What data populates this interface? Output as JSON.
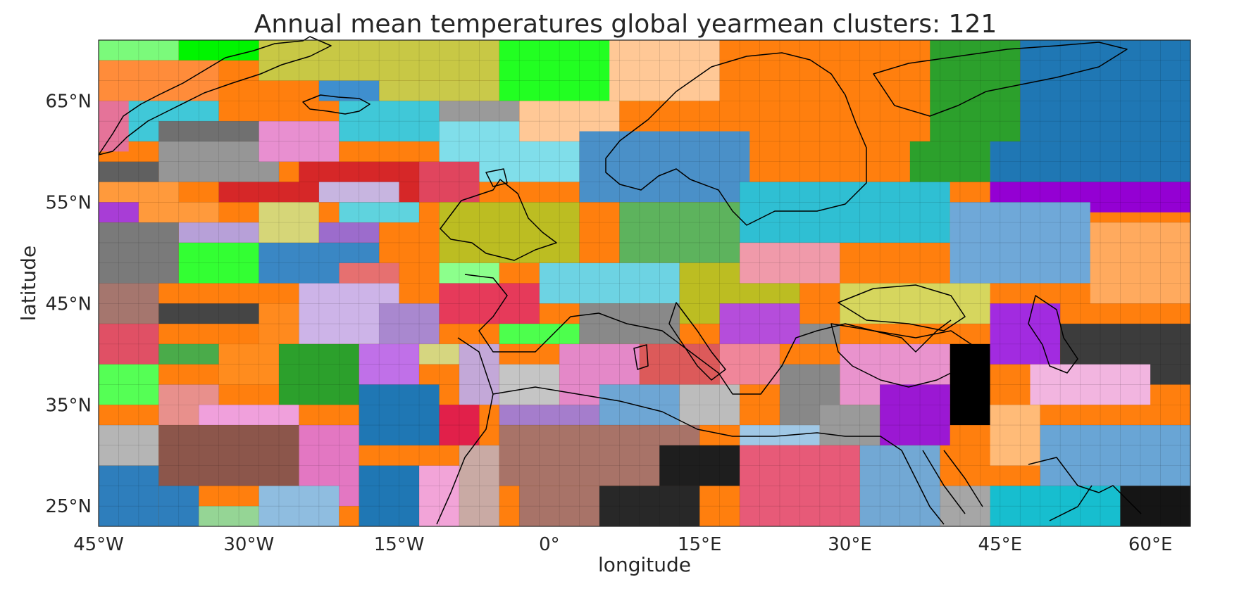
{
  "title": "Annual mean temperatures global yearmean clusters: 121",
  "chart_data": {
    "type": "heatmap",
    "title": "Annual mean temperatures global yearmean clusters: 121",
    "xlabel": "longitude",
    "ylabel": "latitude",
    "xlim": [
      -45,
      64
    ],
    "ylim": [
      23,
      71
    ],
    "grid_step_deg": 2,
    "x_ticks": [
      "45°W",
      "30°W",
      "15°W",
      "0°",
      "15°E",
      "30°E",
      "45°E",
      "60°E"
    ],
    "x_tick_values": [
      -45,
      -30,
      -15,
      0,
      15,
      30,
      45,
      60
    ],
    "y_ticks": [
      "65°N",
      "55°N",
      "45°N",
      "35°N",
      "25°N"
    ],
    "y_tick_values": [
      65,
      55,
      45,
      35,
      25
    ],
    "n_clusters": 121,
    "regions": [
      {
        "lon": [
          -45,
          64
        ],
        "lat": [
          23,
          71
        ],
        "color": "#ff7f0e"
      },
      {
        "lon": [
          -45,
          -39
        ],
        "lat": [
          67,
          71
        ],
        "color": "#ff7f0e"
      },
      {
        "lon": [
          -45,
          -37
        ],
        "lat": [
          69,
          71
        ],
        "color": "#7bfa7b"
      },
      {
        "lon": [
          -37,
          -29
        ],
        "lat": [
          69,
          71
        ],
        "color": "#00f500"
      },
      {
        "lon": [
          -29,
          -5
        ],
        "lat": [
          67,
          71
        ],
        "color": "#c8c845"
      },
      {
        "lon": [
          -5,
          13
        ],
        "lat": [
          65,
          71
        ],
        "color": "#22ff22"
      },
      {
        "lon": [
          -45,
          -33
        ],
        "lat": [
          65,
          69
        ],
        "color": "#ff8c3a"
      },
      {
        "lon": [
          -17,
          -5
        ],
        "lat": [
          65,
          67
        ],
        "color": "#c9c94a"
      },
      {
        "lon": [
          -23,
          -17
        ],
        "lat": [
          65,
          67
        ],
        "color": "#3f8fcf"
      },
      {
        "lon": [
          6,
          20
        ],
        "lat": [
          65,
          71
        ],
        "color": "#ffc896"
      },
      {
        "lon": [
          13,
          17
        ],
        "lat": [
          69,
          71
        ],
        "color": "#ffc896"
      },
      {
        "lon": [
          17,
          40
        ],
        "lat": [
          59,
          71
        ],
        "color": "#ff7f0e"
      },
      {
        "lon": [
          38,
          47
        ],
        "lat": [
          61,
          71
        ],
        "color": "#2ca02c"
      },
      {
        "lon": [
          47,
          64
        ],
        "lat": [
          61,
          71
        ],
        "color": "#1f77b4"
      },
      {
        "lon": [
          44,
          64
        ],
        "lat": [
          57,
          61
        ],
        "color": "#1f77b4"
      },
      {
        "lon": [
          36,
          44
        ],
        "lat": [
          57,
          61
        ],
        "color": "#2ca02c"
      },
      {
        "lon": [
          44,
          64
        ],
        "lat": [
          54,
          57
        ],
        "color": "#9400d3"
      },
      {
        "lon": [
          -45,
          -42
        ],
        "lat": [
          60,
          65
        ],
        "color": "#e57399"
      },
      {
        "lon": [
          -42,
          -33
        ],
        "lat": [
          61,
          65
        ],
        "color": "#40c8d8"
      },
      {
        "lon": [
          -39,
          -29
        ],
        "lat": [
          61,
          63
        ],
        "color": "#707070"
      },
      {
        "lon": [
          -39,
          -27
        ],
        "lat": [
          57,
          61
        ],
        "color": "#969696"
      },
      {
        "lon": [
          -45,
          -39
        ],
        "lat": [
          57,
          59
        ],
        "color": "#606060"
      },
      {
        "lon": [
          -29,
          -21
        ],
        "lat": [
          59,
          63
        ],
        "color": "#e88fd0"
      },
      {
        "lon": [
          -21,
          -11
        ],
        "lat": [
          61,
          65
        ],
        "color": "#40c8d8"
      },
      {
        "lon": [
          -11,
          3
        ],
        "lat": [
          57,
          63
        ],
        "color": "#80deea"
      },
      {
        "lon": [
          -11,
          -3
        ],
        "lat": [
          63,
          65
        ],
        "color": "#9a9a9a"
      },
      {
        "lon": [
          -3,
          7
        ],
        "lat": [
          61,
          65
        ],
        "color": "#ffc896"
      },
      {
        "lon": [
          -25,
          -13
        ],
        "lat": [
          55,
          59
        ],
        "color": "#d62728"
      },
      {
        "lon": [
          -13,
          -7
        ],
        "lat": [
          55,
          59
        ],
        "color": "#e0455e"
      },
      {
        "lon": [
          3,
          20
        ],
        "lat": [
          55,
          62
        ],
        "color": "#4a90c8"
      },
      {
        "lon": [
          -45,
          -37
        ],
        "lat": [
          55,
          57
        ],
        "color": "#ff9a3c"
      },
      {
        "lon": [
          -45,
          -41
        ],
        "lat": [
          53,
          55
        ],
        "color": "#a83dd6"
      },
      {
        "lon": [
          -41,
          -33
        ],
        "lat": [
          53,
          55
        ],
        "color": "#ff9a3c"
      },
      {
        "lon": [
          -33,
          -23
        ],
        "lat": [
          55,
          57
        ],
        "color": "#d62728"
      },
      {
        "lon": [
          -23,
          -15
        ],
        "lat": [
          55,
          57
        ],
        "color": "#c7b5e0"
      },
      {
        "lon": [
          -45,
          -37
        ],
        "lat": [
          47,
          53
        ],
        "color": "#7a7a7a"
      },
      {
        "lon": [
          -37,
          -29
        ],
        "lat": [
          51,
          53
        ],
        "color": "#b7a0d8"
      },
      {
        "lon": [
          -29,
          -23
        ],
        "lat": [
          51,
          55
        ],
        "color": "#d6d678"
      },
      {
        "lon": [
          -23,
          -17
        ],
        "lat": [
          51,
          53
        ],
        "color": "#9c6ccc"
      },
      {
        "lon": [
          -21,
          -13
        ],
        "lat": [
          53,
          55
        ],
        "color": "#5fd3de"
      },
      {
        "lon": [
          -11,
          3
        ],
        "lat": [
          49,
          55
        ],
        "color": "#bcbd22"
      },
      {
        "lon": [
          7,
          19
        ],
        "lat": [
          49,
          55
        ],
        "color": "#5db35d"
      },
      {
        "lon": [
          19,
          40
        ],
        "lat": [
          51,
          57
        ],
        "color": "#2fbfd3"
      },
      {
        "lon": [
          40,
          54
        ],
        "lat": [
          47,
          55
        ],
        "color": "#6fa8d8"
      },
      {
        "lon": [
          54,
          64
        ],
        "lat": [
          45,
          53
        ],
        "color": "#ffaa5e"
      },
      {
        "lon": [
          -37,
          -29
        ],
        "lat": [
          47,
          51
        ],
        "color": "#33ff33"
      },
      {
        "lon": [
          -29,
          -17
        ],
        "lat": [
          47,
          51
        ],
        "color": "#3a87c4"
      },
      {
        "lon": [
          -21,
          -15
        ],
        "lat": [
          47,
          49
        ],
        "color": "#e67070"
      },
      {
        "lon": [
          -11,
          -5
        ],
        "lat": [
          45,
          49
        ],
        "color": "#8cff8c"
      },
      {
        "lon": [
          -1,
          13
        ],
        "lat": [
          45,
          49
        ],
        "color": "#6dd3e3"
      },
      {
        "lon": [
          13,
          25
        ],
        "lat": [
          43,
          49
        ],
        "color": "#bcbd22"
      },
      {
        "lon": [
          19,
          29
        ],
        "lat": [
          47,
          51
        ],
        "color": "#f09aaa"
      },
      {
        "lon": [
          29,
          44
        ],
        "lat": [
          43,
          47
        ],
        "color": "#d6d65e"
      },
      {
        "lon": [
          -45,
          -39
        ],
        "lat": [
          43,
          47
        ],
        "color": "#a5766e"
      },
      {
        "lon": [
          -39,
          -29
        ],
        "lat": [
          43,
          45
        ],
        "color": "#454545"
      },
      {
        "lon": [
          -29,
          -25
        ],
        "lat": [
          41,
          45
        ],
        "color": "#ff8a1e"
      },
      {
        "lon": [
          -25,
          -15
        ],
        "lat": [
          41,
          47
        ],
        "color": "#cdb4e8"
      },
      {
        "lon": [
          -17,
          -11
        ],
        "lat": [
          41,
          45
        ],
        "color": "#a988cf"
      },
      {
        "lon": [
          -11,
          -1
        ],
        "lat": [
          43,
          47
        ],
        "color": "#e63a5a"
      },
      {
        "lon": [
          -5,
          3
        ],
        "lat": [
          41,
          43
        ],
        "color": "#4dff4d"
      },
      {
        "lon": [
          3,
          13
        ],
        "lat": [
          41,
          45
        ],
        "color": "#898989"
      },
      {
        "lon": [
          17,
          25
        ],
        "lat": [
          41,
          45
        ],
        "color": "#b54ddb"
      },
      {
        "lon": [
          25,
          29
        ],
        "lat": [
          41,
          43
        ],
        "color": "#8d8d8d"
      },
      {
        "lon": [
          -45,
          -39
        ],
        "lat": [
          39,
          43
        ],
        "color": "#e05065"
      },
      {
        "lon": [
          -39,
          -33
        ],
        "lat": [
          39,
          41
        ],
        "color": "#4aab4a"
      },
      {
        "lon": [
          -33,
          -27
        ],
        "lat": [
          37,
          41
        ],
        "color": "#ff8c1e"
      },
      {
        "lon": [
          -27,
          -19
        ],
        "lat": [
          35,
          41
        ],
        "color": "#2ca02c"
      },
      {
        "lon": [
          -19,
          -13
        ],
        "lat": [
          37,
          41
        ],
        "color": "#c070e8"
      },
      {
        "lon": [
          -13,
          -9
        ],
        "lat": [
          39,
          41
        ],
        "color": "#d6d680"
      },
      {
        "lon": [
          -9,
          -5
        ],
        "lat": [
          35,
          41
        ],
        "color": "#c3a8d8"
      },
      {
        "lon": [
          -5,
          1
        ],
        "lat": [
          35,
          39
        ],
        "color": "#c5c5c5"
      },
      {
        "lon": [
          1,
          9
        ],
        "lat": [
          35,
          41
        ],
        "color": "#e488c8"
      },
      {
        "lon": [
          9,
          17
        ],
        "lat": [
          37,
          41
        ],
        "color": "#dc5a5a"
      },
      {
        "lon": [
          17,
          23
        ],
        "lat": [
          37,
          41
        ],
        "color": "#f0869a"
      },
      {
        "lon": [
          23,
          29
        ],
        "lat": [
          33,
          39
        ],
        "color": "#888888"
      },
      {
        "lon": [
          29,
          40
        ],
        "lat": [
          35,
          41
        ],
        "color": "#e993cd"
      },
      {
        "lon": [
          40,
          44
        ],
        "lat": [
          33,
          41
        ],
        "color": "#000000"
      },
      {
        "lon": [
          44,
          51
        ],
        "lat": [
          39,
          45
        ],
        "color": "#a22be0"
      },
      {
        "lon": [
          51,
          64
        ],
        "lat": [
          37,
          43
        ],
        "color": "#3c3c3c"
      },
      {
        "lon": [
          48,
          60
        ],
        "lat": [
          35,
          39
        ],
        "color": "#f2b5e0"
      },
      {
        "lon": [
          -45,
          -39
        ],
        "lat": [
          35,
          39
        ],
        "color": "#55ff55"
      },
      {
        "lon": [
          -39,
          -33
        ],
        "lat": [
          33,
          37
        ],
        "color": "#e8908c"
      },
      {
        "lon": [
          -35,
          -25
        ],
        "lat": [
          33,
          35
        ],
        "color": "#f0a0dc"
      },
      {
        "lon": [
          -19,
          -11
        ],
        "lat": [
          31,
          37
        ],
        "color": "#1f77b4"
      },
      {
        "lon": [
          -11,
          -7
        ],
        "lat": [
          31,
          35
        ],
        "color": "#e1204a"
      },
      {
        "lon": [
          -5,
          5
        ],
        "lat": [
          33,
          35
        ],
        "color": "#a57dcc"
      },
      {
        "lon": [
          5,
          13
        ],
        "lat": [
          33,
          37
        ],
        "color": "#6ea6d4"
      },
      {
        "lon": [
          13,
          19
        ],
        "lat": [
          33,
          37
        ],
        "color": "#bcbcbc"
      },
      {
        "lon": [
          19,
          27
        ],
        "lat": [
          31,
          33
        ],
        "color": "#a0c8e6"
      },
      {
        "lon": [
          27,
          33
        ],
        "lat": [
          31,
          35
        ],
        "color": "#9a9a9a"
      },
      {
        "lon": [
          33,
          40
        ],
        "lat": [
          31,
          37
        ],
        "color": "#9b18d3"
      },
      {
        "lon": [
          44,
          49
        ],
        "lat": [
          29,
          35
        ],
        "color": "#ffbb78"
      },
      {
        "lon": [
          49,
          64
        ],
        "lat": [
          27,
          33
        ],
        "color": "#69a5d5"
      },
      {
        "lon": [
          -45,
          -39
        ],
        "lat": [
          29,
          33
        ],
        "color": "#b5b5b5"
      },
      {
        "lon": [
          -39,
          -25
        ],
        "lat": [
          27,
          33
        ],
        "color": "#8c564b"
      },
      {
        "lon": [
          -25,
          -19
        ],
        "lat": [
          25,
          33
        ],
        "color": "#e377c2"
      },
      {
        "lon": [
          -19,
          -13
        ],
        "lat": [
          23,
          29
        ],
        "color": "#1f77b4"
      },
      {
        "lon": [
          -13,
          -9
        ],
        "lat": [
          23,
          29
        ],
        "color": "#f2a4d8"
      },
      {
        "lon": [
          -9,
          -5
        ],
        "lat": [
          23,
          31
        ],
        "color": "#c9aaa4"
      },
      {
        "lon": [
          -5,
          15
        ],
        "lat": [
          27,
          33
        ],
        "color": "#a87368"
      },
      {
        "lon": [
          -3,
          5
        ],
        "lat": [
          23,
          27
        ],
        "color": "#a87368"
      },
      {
        "lon": [
          5,
          15
        ],
        "lat": [
          23,
          27
        ],
        "color": "#282828"
      },
      {
        "lon": [
          11,
          19
        ],
        "lat": [
          27,
          31
        ],
        "color": "#1e1e1e"
      },
      {
        "lon": [
          19,
          31
        ],
        "lat": [
          23,
          31
        ],
        "color": "#e75a78"
      },
      {
        "lon": [
          31,
          39
        ],
        "lat": [
          23,
          31
        ],
        "color": "#72a8d4"
      },
      {
        "lon": [
          39,
          44
        ],
        "lat": [
          23,
          27
        ],
        "color": "#a6a6a6"
      },
      {
        "lon": [
          44,
          57
        ],
        "lat": [
          23,
          27
        ],
        "color": "#17becf"
      },
      {
        "lon": [
          57,
          64
        ],
        "lat": [
          23,
          27
        ],
        "color": "#151515"
      },
      {
        "lon": [
          -45,
          -39
        ],
        "lat": [
          23,
          29
        ],
        "color": "#2e7ebc"
      },
      {
        "lon": [
          -39,
          -35
        ],
        "lat": [
          23,
          27
        ],
        "color": "#2e7ebc"
      },
      {
        "lon": [
          -35,
          -29
        ],
        "lat": [
          23,
          25
        ],
        "color": "#95d595"
      },
      {
        "lon": [
          -29,
          -21
        ],
        "lat": [
          23,
          27
        ],
        "color": "#8fbde0"
      }
    ]
  },
  "coastlines_visible": true
}
